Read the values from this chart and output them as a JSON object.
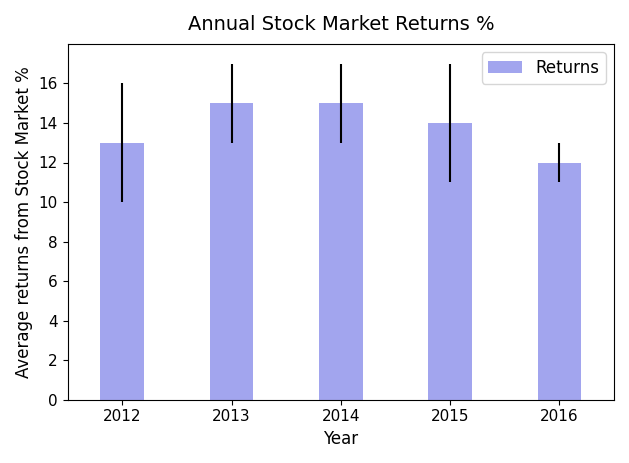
{
  "title": "Annual Stock Market Returns %",
  "xlabel": "Year",
  "ylabel": "Average returns from Stock Market %",
  "categories": [
    "2012",
    "2013",
    "2014",
    "2015",
    "2016"
  ],
  "values": [
    13,
    15,
    15,
    14,
    12
  ],
  "errors_upper": [
    3,
    2,
    2,
    3,
    1
  ],
  "errors_lower": [
    3,
    2,
    2,
    3,
    1
  ],
  "bar_color": "#7B7FE8",
  "bar_alpha": 0.7,
  "bar_width": 0.4,
  "legend_label": "Returns",
  "ylim": [
    0,
    18
  ],
  "yticks": [
    0,
    2,
    4,
    6,
    8,
    10,
    12,
    14,
    16
  ],
  "figsize": [
    6.29,
    4.63
  ],
  "dpi": 100,
  "title_fontsize": 14,
  "label_fontsize": 12,
  "tick_fontsize": 11
}
